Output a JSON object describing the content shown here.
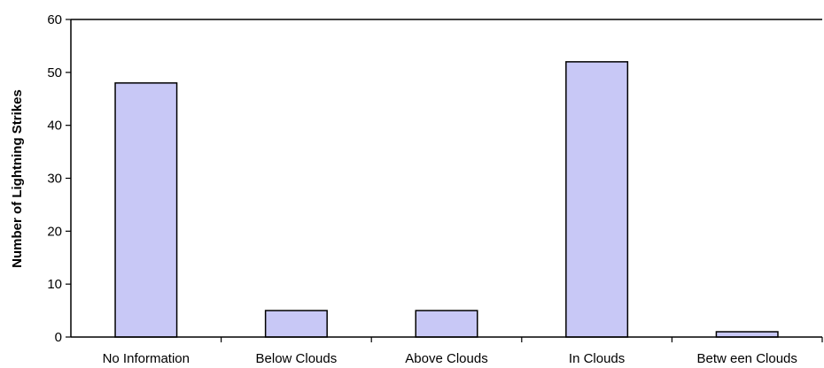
{
  "chart_data": {
    "type": "bar",
    "categories": [
      "No Information",
      "Below  Clouds",
      "Above Clouds",
      "In Clouds",
      "Betw een Clouds"
    ],
    "values": [
      48,
      5,
      5,
      52,
      1
    ],
    "title": "",
    "xlabel": "",
    "ylabel": "Number of Lightning Strikes",
    "ylim": [
      0,
      60
    ],
    "yticks": [
      0,
      10,
      20,
      30,
      40,
      50,
      60
    ],
    "grid": false,
    "legend": "none",
    "colors": {
      "bar_fill": "#c8c8f6",
      "bar_stroke": "#000000"
    }
  }
}
